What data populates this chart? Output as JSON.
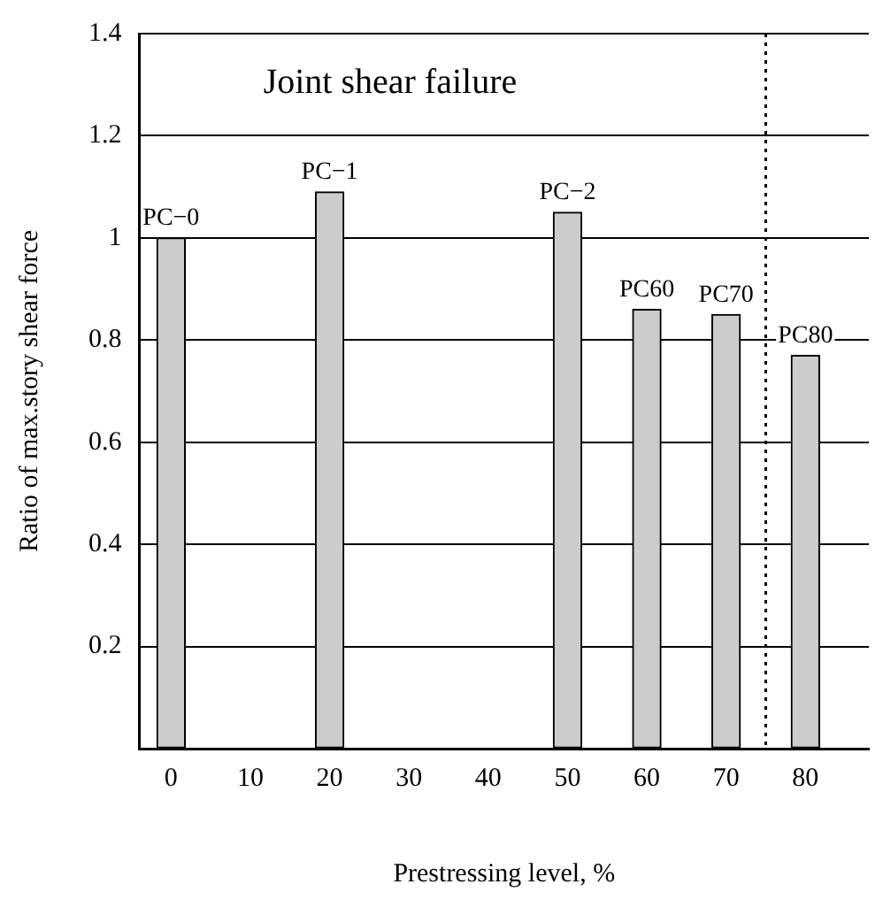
{
  "chart_data": {
    "type": "bar",
    "xlabel": "Prestressing level, %",
    "ylabel": "Ratio of max.story shear force",
    "series": [
      {
        "name": "PC−0",
        "color": "#cccccc",
        "x": [
          0
        ],
        "values": [
          1.0
        ]
      },
      {
        "name": "PC−1",
        "color": "#cccccc",
        "x": [
          20
        ],
        "values": [
          1.09
        ]
      },
      {
        "name": "PC−2",
        "color": "#cccccc",
        "x": [
          50
        ],
        "values": [
          1.05
        ]
      },
      {
        "name": "PC60",
        "color": "#cccccc",
        "x": [
          60
        ],
        "values": [
          0.86
        ]
      },
      {
        "name": "PC70",
        "color": "#cccccc",
        "x": [
          70
        ],
        "values": [
          0.85
        ]
      },
      {
        "name": "PC80",
        "color": "#cccccc",
        "x": [
          80
        ],
        "values": [
          0.77
        ]
      }
    ],
    "xlim": [
      -4,
      88
    ],
    "xticks": [
      0,
      10,
      20,
      30,
      40,
      50,
      60,
      70,
      80
    ],
    "ylim": [
      0,
      1.4
    ],
    "yticks": [
      {
        "value": 0,
        "label": null
      },
      0.2,
      0.4,
      0.6,
      0.8,
      1.0,
      1.2,
      1.4
    ],
    "grid": "y",
    "legend": false,
    "ref_lines": [
      {
        "axis": "x",
        "value": 75,
        "label": null,
        "line_style": "dotted",
        "color": "#000000"
      }
    ],
    "annotations": [
      "Joint shear failure"
    ]
  }
}
